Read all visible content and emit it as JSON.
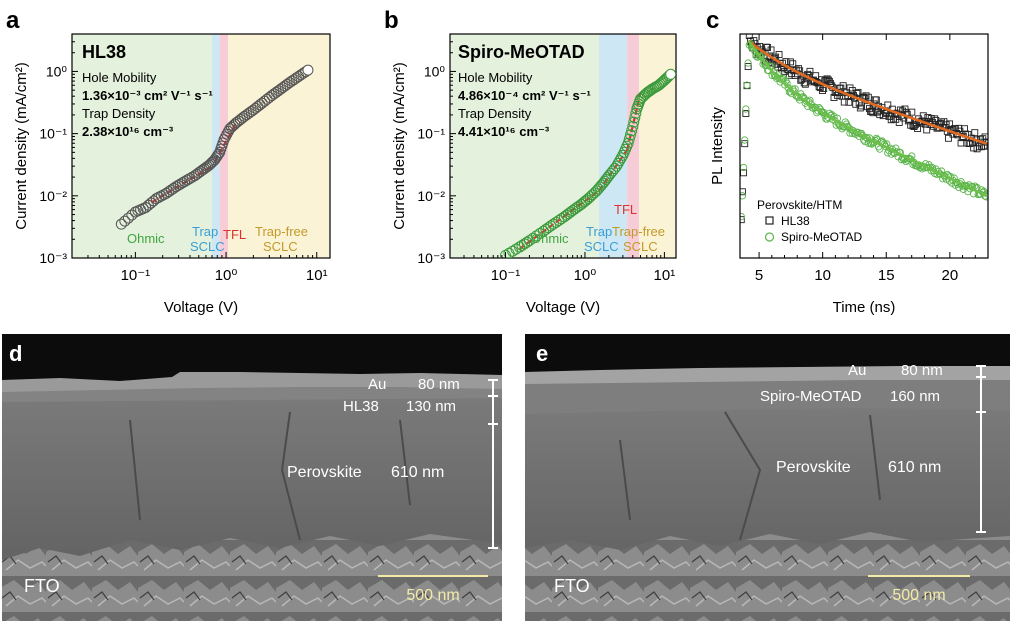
{
  "panels": {
    "a": {
      "letter": "a",
      "sample": "HL38",
      "mobility_label": "Hole Mobility",
      "mobility_value": "1.36×10⁻³ cm² V⁻¹ s⁻¹",
      "trap_label": "Trap Density",
      "trap_value": "2.38×10¹⁶ cm⁻³",
      "region_ohmic": "Ohmic",
      "region_trap1": "Trap",
      "region_trap2": "SCLC",
      "region_tfl": "TFL",
      "region_free1": "Trap-free",
      "region_free2": "SCLC"
    },
    "b": {
      "letter": "b",
      "sample": "Spiro-MeOTAD",
      "mobility_label": "Hole Mobility",
      "mobility_value": "4.86×10⁻⁴ cm² V⁻¹ s⁻¹",
      "trap_label": "Trap Density",
      "trap_value": "4.41×10¹⁶ cm⁻³",
      "region_ohmic": "Ohmic",
      "region_trap1": "Trap",
      "region_trap2": "SCLC",
      "region_tfl": "TFL",
      "region_free1": "Trap-free",
      "region_free2": "SCLC"
    },
    "c": {
      "letter": "c",
      "legend_title": "Perovskite/HTM",
      "legend_hl38": "HL38",
      "legend_spiro": "Spiro-MeOTAD"
    },
    "d": {
      "letter": "d",
      "au": "Au",
      "au_t": "80 nm",
      "htm": "HL38",
      "htm_t": "130 nm",
      "pvk": "Perovskite",
      "pvk_t": "610 nm",
      "fto": "FTO",
      "scale": "500 nm"
    },
    "e": {
      "letter": "e",
      "au": "Au",
      "au_t": "80 nm",
      "htm": "Spiro-MeOTAD",
      "htm_t": "160 nm",
      "pvk": "Perovskite",
      "pvk_t": "610 nm",
      "fto": "FTO",
      "scale": "500 nm"
    }
  },
  "chart_data": [
    {
      "type": "scatter",
      "panel": "a",
      "xlabel": "Voltage (V)",
      "ylabel": "Current density (mA/cm²)",
      "xscale": "log",
      "yscale": "log",
      "xlim": [
        0.02,
        14
      ],
      "ylim": [
        0.001,
        4
      ],
      "xticks": [
        0.1,
        1,
        10
      ],
      "xtick_labels": [
        "10⁻¹",
        "10⁰",
        "10¹"
      ],
      "yticks": [
        0.001,
        0.01,
        0.1,
        1
      ],
      "ytick_labels": [
        "10⁻³",
        "10⁻²",
        "10⁻¹",
        "10⁰"
      ],
      "regions": [
        {
          "name": "Ohmic",
          "x0": 0.02,
          "x1": 0.7,
          "color": "#e4f1dd"
        },
        {
          "name": "Trap SCLC",
          "x0": 0.7,
          "x1": 0.85,
          "color": "#cde7f4"
        },
        {
          "name": "TFL",
          "x0": 0.85,
          "x1": 1.05,
          "color": "#f6cdd6"
        },
        {
          "name": "Trap-free SCLC",
          "x0": 1.05,
          "x1": 14,
          "color": "#fbf3d6"
        }
      ],
      "series": [
        {
          "marker": "open-circle",
          "color": "#555555",
          "x": [
            0.07,
            0.1,
            0.13,
            0.17,
            0.22,
            0.28,
            0.35,
            0.45,
            0.55,
            0.65,
            0.75,
            0.85,
            0.95,
            1.1,
            1.3,
            1.6,
            2.0,
            2.5,
            3.2,
            4.0,
            5.0,
            6.3,
            8.0
          ],
          "y": [
            0.0035,
            0.0055,
            0.0065,
            0.009,
            0.011,
            0.014,
            0.017,
            0.021,
            0.026,
            0.031,
            0.038,
            0.05,
            0.08,
            0.12,
            0.15,
            0.19,
            0.24,
            0.31,
            0.41,
            0.52,
            0.66,
            0.83,
            1.05
          ]
        }
      ],
      "fit_segments": [
        {
          "color": "#e03030",
          "x": [
            0.15,
            0.7
          ],
          "y": [
            0.0078,
            0.03
          ]
        },
        {
          "color": "#e03030",
          "x": [
            0.75,
            1.3
          ],
          "y": [
            0.035,
            0.15
          ]
        }
      ]
    },
    {
      "type": "scatter",
      "panel": "b",
      "xlabel": "Voltage (V)",
      "ylabel": "Current density (mA/cm²)",
      "xscale": "log",
      "yscale": "log",
      "xlim": [
        0.02,
        14
      ],
      "ylim": [
        0.001,
        4
      ],
      "xticks": [
        0.1,
        1,
        10
      ],
      "xtick_labels": [
        "10⁻¹",
        "10⁰",
        "10¹"
      ],
      "yticks": [
        0.001,
        0.01,
        0.1,
        1
      ],
      "ytick_labels": [
        "10⁻³",
        "10⁻²",
        "10⁻¹",
        "10⁰"
      ],
      "regions": [
        {
          "name": "Ohmic",
          "x0": 0.02,
          "x1": 1.5,
          "color": "#e4f1dd"
        },
        {
          "name": "Trap SCLC",
          "x0": 1.5,
          "x1": 3.4,
          "color": "#cde7f4"
        },
        {
          "name": "TFL",
          "x0": 3.4,
          "x1": 4.8,
          "color": "#f6cdd6"
        },
        {
          "name": "Trap-free SCLC",
          "x0": 4.8,
          "x1": 14,
          "color": "#fbf3d6"
        }
      ],
      "series": [
        {
          "marker": "open-circle",
          "color": "#3a9a3a",
          "x": [
            0.1,
            0.15,
            0.2,
            0.3,
            0.4,
            0.55,
            0.7,
            0.9,
            1.1,
            1.4,
            1.7,
            2.0,
            2.5,
            3.0,
            3.5,
            4.0,
            4.5,
            5.0,
            6.0,
            7.0,
            8.5,
            10.0,
            12.0
          ],
          "y": [
            0.0011,
            0.0015,
            0.0019,
            0.0027,
            0.0035,
            0.0046,
            0.0058,
            0.0073,
            0.009,
            0.012,
            0.016,
            0.021,
            0.03,
            0.045,
            0.07,
            0.13,
            0.25,
            0.36,
            0.45,
            0.52,
            0.6,
            0.72,
            0.9
          ]
        }
      ],
      "fit_segments": [
        {
          "color": "#e03030",
          "x": [
            0.15,
            1.5
          ],
          "y": [
            0.0014,
            0.012
          ]
        },
        {
          "color": "#e03030",
          "x": [
            1.5,
            3.4
          ],
          "y": [
            0.012,
            0.055
          ]
        },
        {
          "color": "#e03030",
          "x": [
            3.4,
            5.0
          ],
          "y": [
            0.055,
            0.45
          ]
        }
      ]
    },
    {
      "type": "scatter",
      "panel": "c",
      "xlabel": "Time (ns)",
      "ylabel": "PL Intensity",
      "xlim": [
        3.5,
        23
      ],
      "xticks": [
        5,
        10,
        15,
        20
      ],
      "xtick_labels": [
        "5",
        "10",
        "15",
        "20"
      ],
      "yscale": "log",
      "ylim": [
        0.015,
        1.15
      ],
      "ytick_labels": [],
      "series": [
        {
          "name": "HL38",
          "marker": "open-square",
          "color": "#222222",
          "fit_color": "#e06a20",
          "decay": [
            {
              "amp": 0.35,
              "tau": 2.5
            },
            {
              "amp": 0.65,
              "tau": 12.0
            }
          ]
        },
        {
          "name": "Spiro-MeOTAD",
          "marker": "open-circle",
          "color": "#5ab44a",
          "fit_color": "#6ec04a",
          "decay": [
            {
              "amp": 0.55,
              "tau": 1.8
            },
            {
              "amp": 0.45,
              "tau": 8.5
            }
          ]
        }
      ]
    }
  ]
}
